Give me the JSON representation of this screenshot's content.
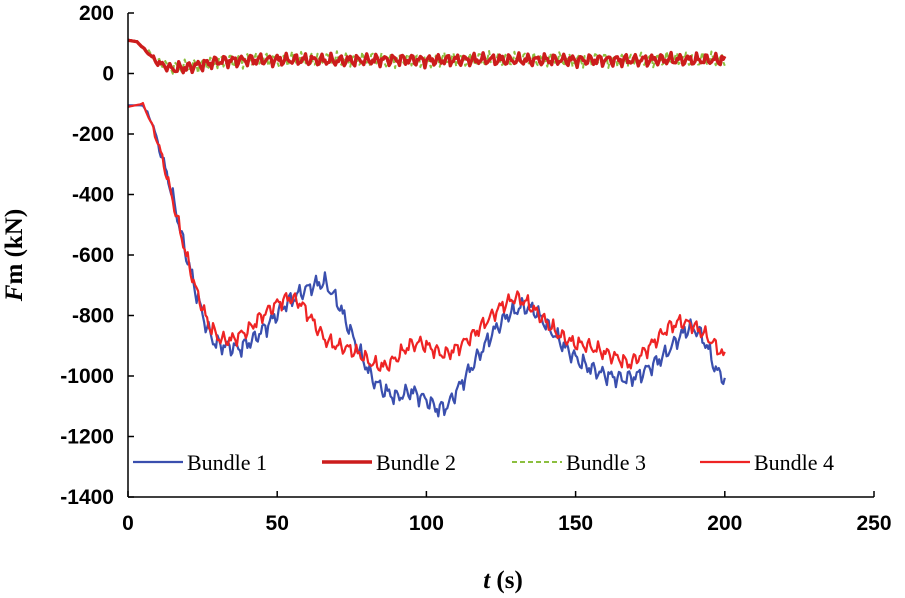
{
  "chart_data": {
    "type": "line",
    "title": "",
    "xlabel": {
      "italic": "t",
      "rest": " (s)"
    },
    "ylabel": {
      "italic": "F",
      "rest": "m (kN)"
    },
    "xlim": [
      0,
      250
    ],
    "ylim": [
      -1400,
      200
    ],
    "x_ticks": [
      "0",
      "50",
      "100",
      "150",
      "200",
      "250"
    ],
    "y_ticks": [
      "200",
      "0",
      "-200",
      "-400",
      "-600",
      "-800",
      "-1000",
      "-1200",
      "-1400"
    ],
    "grid": false,
    "legend": {
      "position": "bottom-inside"
    },
    "series": [
      {
        "name": "Bundle 1",
        "color": "#3a4fae",
        "style": "solid",
        "points": [
          [
            0,
            -105
          ],
          [
            5,
            -105
          ],
          [
            8,
            -160
          ],
          [
            10,
            -230
          ],
          [
            13,
            -330
          ],
          [
            16,
            -450
          ],
          [
            19,
            -580
          ],
          [
            23,
            -730
          ],
          [
            26,
            -830
          ],
          [
            29,
            -890
          ],
          [
            32,
            -900
          ],
          [
            37,
            -910
          ],
          [
            42,
            -880
          ],
          [
            47,
            -830
          ],
          [
            52,
            -770
          ],
          [
            57,
            -730
          ],
          [
            62,
            -700
          ],
          [
            66,
            -690
          ],
          [
            70,
            -750
          ],
          [
            74,
            -840
          ],
          [
            78,
            -930
          ],
          [
            82,
            -1010
          ],
          [
            86,
            -1050
          ],
          [
            90,
            -1070
          ],
          [
            95,
            -1050
          ],
          [
            100,
            -1080
          ],
          [
            104,
            -1110
          ],
          [
            107,
            -1100
          ],
          [
            112,
            -1020
          ],
          [
            117,
            -940
          ],
          [
            122,
            -860
          ],
          [
            127,
            -800
          ],
          [
            132,
            -770
          ],
          [
            136,
            -780
          ],
          [
            141,
            -840
          ],
          [
            146,
            -900
          ],
          [
            151,
            -950
          ],
          [
            156,
            -980
          ],
          [
            161,
            -1000
          ],
          [
            166,
            -1010
          ],
          [
            171,
            -1000
          ],
          [
            175,
            -970
          ],
          [
            180,
            -930
          ],
          [
            184,
            -880
          ],
          [
            188,
            -840
          ],
          [
            191,
            -850
          ],
          [
            194,
            -900
          ],
          [
            197,
            -980
          ],
          [
            200,
            -1010
          ]
        ]
      },
      {
        "name": "Bundle 2",
        "color": "#cc1c1c",
        "style": "solid-thick",
        "points": [
          [
            0,
            110
          ],
          [
            3,
            105
          ],
          [
            6,
            75
          ],
          [
            10,
            35
          ],
          [
            15,
            15
          ],
          [
            20,
            20
          ],
          [
            25,
            30
          ],
          [
            30,
            40
          ],
          [
            40,
            45
          ],
          [
            50,
            45
          ],
          [
            60,
            45
          ],
          [
            70,
            42
          ],
          [
            80,
            44
          ],
          [
            90,
            46
          ],
          [
            100,
            44
          ],
          [
            110,
            45
          ],
          [
            120,
            46
          ],
          [
            130,
            44
          ],
          [
            140,
            45
          ],
          [
            150,
            44
          ],
          [
            160,
            45
          ],
          [
            170,
            44
          ],
          [
            180,
            46
          ],
          [
            190,
            45
          ],
          [
            200,
            45
          ]
        ]
      },
      {
        "name": "Bundle 3",
        "color": "#8cbf3f",
        "style": "dashed",
        "points": [
          [
            0,
            110
          ],
          [
            3,
            105
          ],
          [
            6,
            80
          ],
          [
            10,
            40
          ],
          [
            15,
            20
          ],
          [
            20,
            22
          ],
          [
            25,
            32
          ],
          [
            30,
            40
          ],
          [
            40,
            46
          ],
          [
            50,
            47
          ],
          [
            60,
            46
          ],
          [
            70,
            45
          ],
          [
            80,
            47
          ],
          [
            90,
            46
          ],
          [
            100,
            45
          ],
          [
            110,
            47
          ],
          [
            120,
            46
          ],
          [
            130,
            45
          ],
          [
            140,
            46
          ],
          [
            150,
            45
          ],
          [
            160,
            46
          ],
          [
            170,
            45
          ],
          [
            180,
            47
          ],
          [
            190,
            46
          ],
          [
            200,
            45
          ]
        ]
      },
      {
        "name": "Bundle 4",
        "color": "#ee2424",
        "style": "solid",
        "points": [
          [
            0,
            -110
          ],
          [
            5,
            -100
          ],
          [
            8,
            -170
          ],
          [
            11,
            -260
          ],
          [
            14,
            -380
          ],
          [
            17,
            -500
          ],
          [
            20,
            -620
          ],
          [
            23,
            -720
          ],
          [
            27,
            -830
          ],
          [
            31,
            -880
          ],
          [
            35,
            -880
          ],
          [
            40,
            -850
          ],
          [
            45,
            -800
          ],
          [
            50,
            -760
          ],
          [
            54,
            -740
          ],
          [
            58,
            -760
          ],
          [
            62,
            -820
          ],
          [
            66,
            -880
          ],
          [
            70,
            -900
          ],
          [
            74,
            -910
          ],
          [
            78,
            -930
          ],
          [
            82,
            -960
          ],
          [
            86,
            -970
          ],
          [
            90,
            -940
          ],
          [
            94,
            -900
          ],
          [
            98,
            -890
          ],
          [
            102,
            -910
          ],
          [
            106,
            -930
          ],
          [
            110,
            -910
          ],
          [
            115,
            -870
          ],
          [
            120,
            -820
          ],
          [
            125,
            -770
          ],
          [
            130,
            -740
          ],
          [
            134,
            -760
          ],
          [
            139,
            -810
          ],
          [
            144,
            -860
          ],
          [
            149,
            -890
          ],
          [
            154,
            -900
          ],
          [
            159,
            -920
          ],
          [
            164,
            -940
          ],
          [
            168,
            -960
          ],
          [
            172,
            -930
          ],
          [
            177,
            -880
          ],
          [
            181,
            -840
          ],
          [
            185,
            -820
          ],
          [
            189,
            -830
          ],
          [
            193,
            -860
          ],
          [
            197,
            -900
          ],
          [
            200,
            -940
          ]
        ]
      }
    ]
  }
}
